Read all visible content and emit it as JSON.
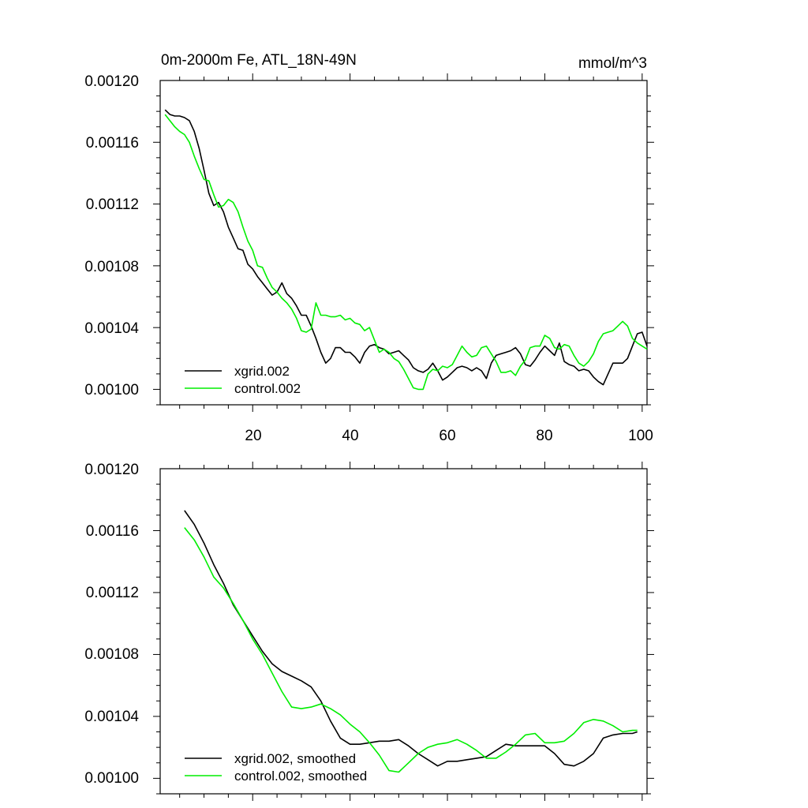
{
  "chart_data": [
    {
      "type": "line",
      "title": "0m-2000m Fe, ATL_18N-49N",
      "units": "mmol/m^3",
      "xlabel": "",
      "ylabel": "",
      "xlim": [
        1,
        101
      ],
      "ylim": [
        0.00099,
        0.0012
      ],
      "yticks": [
        "0.00120",
        "0.00116",
        "0.00112",
        "0.00108",
        "0.00104",
        "0.00100"
      ],
      "xticks": [
        "20",
        "40",
        "60",
        "80",
        "100"
      ],
      "legend_position": "bottom-left",
      "x": [
        2,
        3,
        4,
        5,
        6,
        7,
        8,
        9,
        10,
        11,
        12,
        13,
        14,
        15,
        16,
        17,
        18,
        19,
        20,
        21,
        22,
        23,
        24,
        25,
        26,
        27,
        28,
        29,
        30,
        31,
        32,
        33,
        34,
        35,
        36,
        37,
        38,
        39,
        40,
        41,
        42,
        43,
        44,
        45,
        46,
        47,
        48,
        49,
        50,
        51,
        52,
        53,
        54,
        55,
        56,
        57,
        58,
        59,
        60,
        61,
        62,
        63,
        64,
        65,
        66,
        67,
        68,
        69,
        70,
        71,
        72,
        73,
        74,
        75,
        76,
        77,
        78,
        79,
        80,
        81,
        82,
        83,
        84,
        85,
        86,
        87,
        88,
        89,
        90,
        91,
        92,
        93,
        94,
        95,
        96,
        97,
        98,
        99,
        100,
        101
      ],
      "series": [
        {
          "name": "xgrid.002",
          "color": "#000000",
          "values": [
            0.001181,
            0.001178,
            0.001177,
            0.001177,
            0.001176,
            0.001174,
            0.001167,
            0.001156,
            0.001142,
            0.001127,
            0.001119,
            0.001121,
            0.001115,
            0.001105,
            0.001098,
            0.001091,
            0.00109,
            0.001081,
            0.001078,
            0.001073,
            0.001069,
            0.001065,
            0.001061,
            0.001063,
            0.001069,
            0.001062,
            0.001059,
            0.001054,
            0.001048,
            0.001048,
            0.001041,
            0.001033,
            0.001024,
            0.001017,
            0.00102,
            0.001027,
            0.001027,
            0.001024,
            0.001024,
            0.001021,
            0.001017,
            0.001024,
            0.001028,
            0.001029,
            0.001027,
            0.001026,
            0.001023,
            0.001024,
            0.001025,
            0.001022,
            0.001019,
            0.001014,
            0.001012,
            0.001011,
            0.001013,
            0.001017,
            0.001012,
            0.001006,
            0.001008,
            0.001011,
            0.001014,
            0.001015,
            0.001014,
            0.001012,
            0.001014,
            0.001012,
            0.001007,
            0.001017,
            0.001022,
            0.001023,
            0.001024,
            0.001025,
            0.001027,
            0.001023,
            0.001016,
            0.001015,
            0.001019,
            0.001024,
            0.001028,
            0.001025,
            0.001022,
            0.00103,
            0.001018,
            0.001016,
            0.001015,
            0.001012,
            0.001013,
            0.001012,
            0.001008,
            0.001005,
            0.001003,
            0.00101,
            0.001017,
            0.001017,
            0.001017,
            0.00102,
            0.001028,
            0.001036,
            0.001037,
            0.001028
          ]
        },
        {
          "name": "control.002",
          "color": "#00ee00",
          "values": [
            0.001178,
            0.001174,
            0.00117,
            0.001167,
            0.001165,
            0.00116,
            0.001151,
            0.001143,
            0.001136,
            0.001135,
            0.001126,
            0.001118,
            0.001119,
            0.001123,
            0.001121,
            0.001115,
            0.001105,
            0.001096,
            0.00109,
            0.00108,
            0.001079,
            0.001072,
            0.001066,
            0.001063,
            0.001059,
            0.001056,
            0.001052,
            0.001046,
            0.001038,
            0.001037,
            0.001039,
            0.001056,
            0.001048,
            0.001048,
            0.001047,
            0.001047,
            0.001048,
            0.001045,
            0.001046,
            0.001043,
            0.001042,
            0.001038,
            0.00104,
            0.001032,
            0.001024,
            0.001026,
            0.001024,
            0.00102,
            0.001018,
            0.001013,
            0.001007,
            0.001001,
            0.001,
            0.001,
            0.00101,
            0.001013,
            0.001012,
            0.001015,
            0.001014,
            0.001016,
            0.001022,
            0.001028,
            0.001024,
            0.001021,
            0.001022,
            0.001027,
            0.001028,
            0.001023,
            0.001018,
            0.001011,
            0.001011,
            0.001012,
            0.001009,
            0.001015,
            0.001019,
            0.001027,
            0.001028,
            0.001028,
            0.001035,
            0.001033,
            0.001027,
            0.001026,
            0.001029,
            0.001028,
            0.001022,
            0.001017,
            0.001015,
            0.001018,
            0.001023,
            0.001031,
            0.001036,
            0.001037,
            0.001038,
            0.001041,
            0.001044,
            0.001041,
            0.001033,
            0.00103,
            0.001028,
            0.001026
          ]
        }
      ]
    },
    {
      "type": "line",
      "title": "",
      "xlabel": "",
      "ylabel": "",
      "xlim": [
        1,
        101
      ],
      "ylim": [
        0.00099,
        0.0012
      ],
      "yticks": [
        "0.00120",
        "0.00116",
        "0.00112",
        "0.00108",
        "0.00104",
        "0.00100"
      ],
      "xticks": [],
      "legend_position": "bottom-left",
      "x": [
        6,
        8,
        10,
        12,
        14,
        16,
        18,
        20,
        22,
        24,
        26,
        28,
        30,
        32,
        34,
        36,
        38,
        40,
        42,
        44,
        46,
        48,
        50,
        52,
        54,
        56,
        58,
        60,
        62,
        64,
        66,
        68,
        70,
        72,
        74,
        76,
        78,
        80,
        82,
        84,
        86,
        88,
        90,
        92,
        94,
        96,
        98,
        99
      ],
      "series": [
        {
          "name": "xgrid.002, smoothed",
          "color": "#000000",
          "values": [
            0.001173,
            0.001164,
            0.001152,
            0.001138,
            0.001126,
            0.001112,
            0.001102,
            0.001092,
            0.001082,
            0.001074,
            0.001069,
            0.001066,
            0.001063,
            0.001059,
            0.00105,
            0.001037,
            0.001026,
            0.001022,
            0.001022,
            0.001023,
            0.001024,
            0.001024,
            0.001025,
            0.001021,
            0.001016,
            0.001012,
            0.001008,
            0.001011,
            0.001011,
            0.001012,
            0.001013,
            0.001014,
            0.001018,
            0.001022,
            0.001021,
            0.001021,
            0.001021,
            0.001021,
            0.001016,
            0.001009,
            0.001008,
            0.001011,
            0.001016,
            0.001026,
            0.001028,
            0.001029,
            0.001029,
            0.00103
          ]
        },
        {
          "name": "control.002, smoothed",
          "color": "#00ee00",
          "values": [
            0.001162,
            0.001154,
            0.001143,
            0.00113,
            0.001123,
            0.001113,
            0.001102,
            0.00109,
            0.00108,
            0.001068,
            0.001056,
            0.001046,
            0.001045,
            0.001046,
            0.001048,
            0.001045,
            0.001041,
            0.001035,
            0.00103,
            0.001023,
            0.001015,
            0.001005,
            0.001004,
            0.00101,
            0.001016,
            0.00102,
            0.001022,
            0.001023,
            0.001025,
            0.001022,
            0.001018,
            0.001013,
            0.001013,
            0.001017,
            0.001022,
            0.001028,
            0.001029,
            0.001023,
            0.001023,
            0.001024,
            0.001029,
            0.001036,
            0.001038,
            0.001037,
            0.001034,
            0.00103,
            0.001031,
            0.001031
          ]
        }
      ]
    }
  ]
}
